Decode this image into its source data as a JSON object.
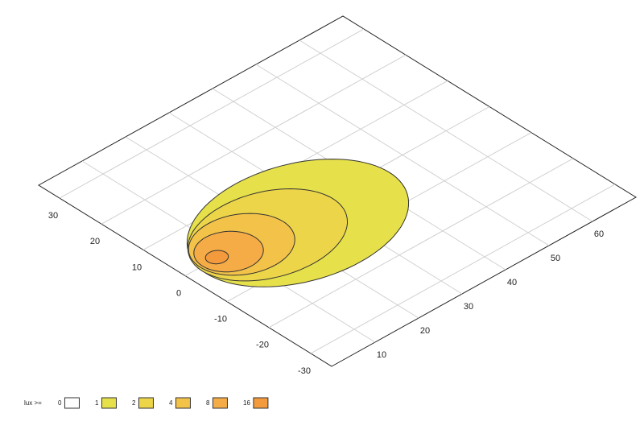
{
  "chart_data": {
    "type": "contour",
    "xlim": [
      0,
      70
    ],
    "ylim": [
      -35,
      35
    ],
    "xticks": [
      10,
      20,
      30,
      40,
      50,
      60
    ],
    "yticks": [
      -30,
      -20,
      -10,
      0,
      10,
      20,
      30
    ],
    "grid": true,
    "legend_title": "lux >=",
    "levels": [
      {
        "level": 0,
        "color": "#ffffff"
      },
      {
        "level": 1,
        "color": "#e6e04a",
        "center": [
          24,
          -2
        ],
        "radii": [
          21,
          15
        ]
      },
      {
        "level": 2,
        "color": "#edd54a",
        "center": [
          18,
          -1
        ],
        "radii": [
          15,
          11
        ]
      },
      {
        "level": 4,
        "color": "#f3c249",
        "center": [
          13,
          0
        ],
        "radii": [
          9.5,
          8
        ]
      },
      {
        "level": 8,
        "color": "#f5ac46",
        "center": [
          10,
          0
        ],
        "radii": [
          6,
          5.5
        ]
      },
      {
        "level": 16,
        "color": "#f39a3d",
        "center": [
          7.5,
          0.2
        ],
        "radii": [
          2,
          1.8
        ]
      }
    ]
  }
}
